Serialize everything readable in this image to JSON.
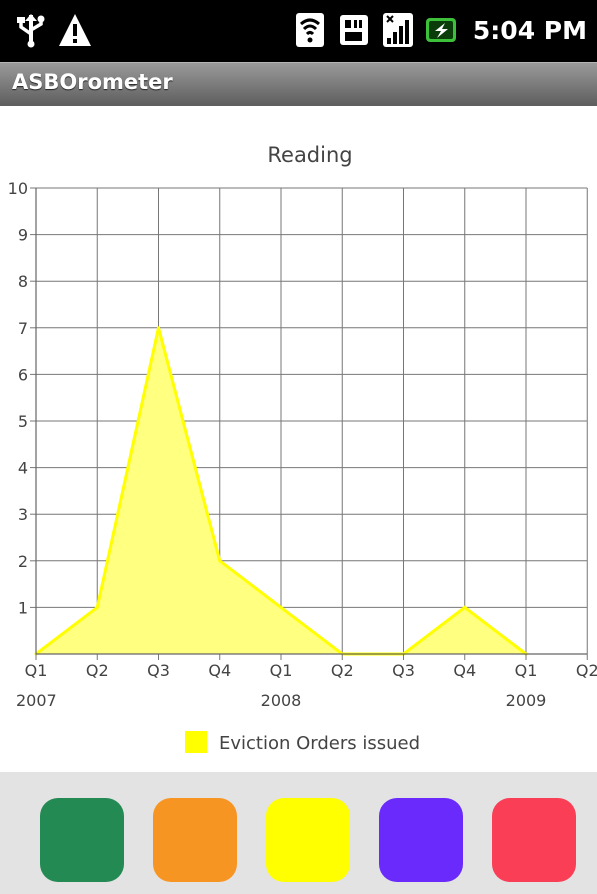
{
  "status_bar": {
    "time": "5:04 PM",
    "icons": [
      "usb-icon",
      "warning-icon",
      "wifi-icon",
      "sd-card-icon",
      "signal-icon",
      "battery-charging-icon"
    ]
  },
  "app": {
    "title": "ASBOrometer"
  },
  "chart_data": {
    "type": "area",
    "title": "Reading",
    "xlabel": "",
    "ylabel": "",
    "x": [
      "Q1 2007",
      "Q2 2007",
      "Q3 2007",
      "Q4 2007",
      "Q1 2008",
      "Q2 2008",
      "Q3 2008",
      "Q4 2008",
      "Q1 2009"
    ],
    "x_tick_labels": [
      "Q1",
      "Q2",
      "Q3",
      "Q4",
      "Q1",
      "Q2",
      "Q3",
      "Q4",
      "Q1",
      "Q2"
    ],
    "year_labels": [
      {
        "label": "2007",
        "tick_index": 0
      },
      {
        "label": "2008",
        "tick_index": 4
      },
      {
        "label": "2009",
        "tick_index": 8
      }
    ],
    "y_ticks": [
      1,
      2,
      3,
      4,
      5,
      6,
      7,
      8,
      9,
      10
    ],
    "ylim": [
      0,
      10
    ],
    "grid": true,
    "legend_position": "bottom",
    "series": [
      {
        "name": "Eviction Orders issued",
        "color": "#ffff00",
        "fill": "#ffff80",
        "values": [
          0,
          1,
          7,
          2,
          1,
          0,
          0,
          1,
          0
        ]
      }
    ]
  },
  "swatches": [
    {
      "name": "green",
      "color": "#238a54"
    },
    {
      "name": "orange",
      "color": "#f79522"
    },
    {
      "name": "yellow",
      "color": "#ffff00"
    },
    {
      "name": "purple",
      "color": "#6a2afb"
    },
    {
      "name": "red",
      "color": "#f93e56"
    }
  ]
}
